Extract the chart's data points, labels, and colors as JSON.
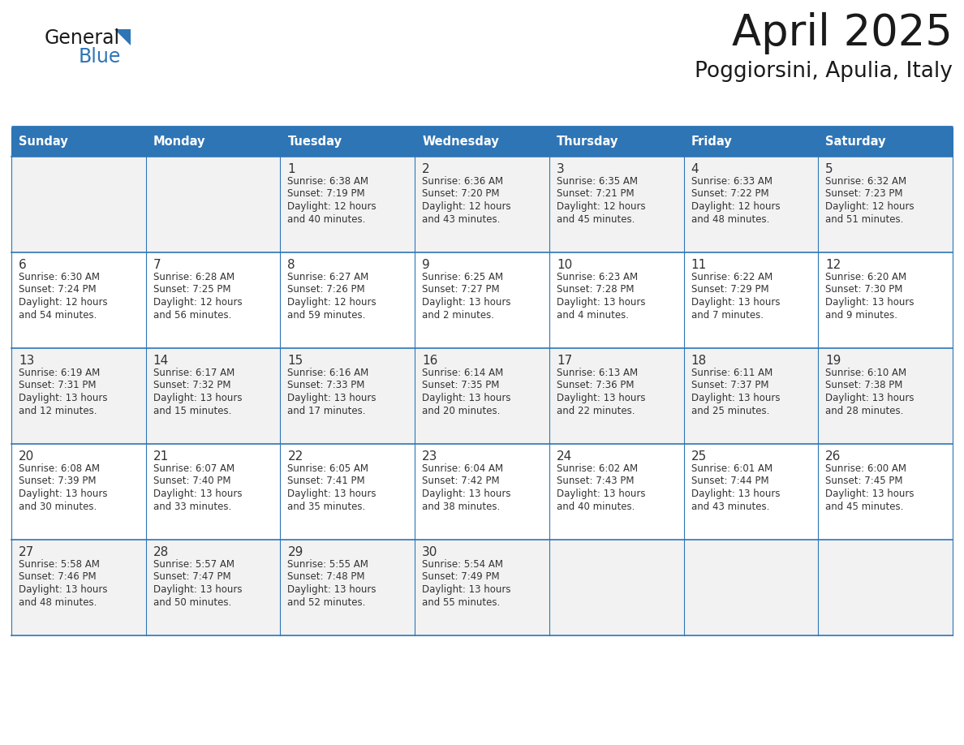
{
  "title": "April 2025",
  "subtitle": "Poggiorsini, Apulia, Italy",
  "days_of_week": [
    "Sunday",
    "Monday",
    "Tuesday",
    "Wednesday",
    "Thursday",
    "Friday",
    "Saturday"
  ],
  "header_bg": "#2E75B6",
  "header_text": "#FFFFFF",
  "cell_bg_light": "#F2F2F2",
  "cell_bg_white": "#FFFFFF",
  "border_color": "#2E75B6",
  "text_color": "#333333",
  "calendar_data": [
    [
      {
        "day": "",
        "sunrise": "",
        "sunset": "",
        "daylight_h": "",
        "daylight_m": ""
      },
      {
        "day": "",
        "sunrise": "",
        "sunset": "",
        "daylight_h": "",
        "daylight_m": ""
      },
      {
        "day": "1",
        "sunrise": "6:38 AM",
        "sunset": "7:19 PM",
        "daylight_h": "12",
        "daylight_m": "40"
      },
      {
        "day": "2",
        "sunrise": "6:36 AM",
        "sunset": "7:20 PM",
        "daylight_h": "12",
        "daylight_m": "43"
      },
      {
        "day": "3",
        "sunrise": "6:35 AM",
        "sunset": "7:21 PM",
        "daylight_h": "12",
        "daylight_m": "45"
      },
      {
        "day": "4",
        "sunrise": "6:33 AM",
        "sunset": "7:22 PM",
        "daylight_h": "12",
        "daylight_m": "48"
      },
      {
        "day": "5",
        "sunrise": "6:32 AM",
        "sunset": "7:23 PM",
        "daylight_h": "12",
        "daylight_m": "51"
      }
    ],
    [
      {
        "day": "6",
        "sunrise": "6:30 AM",
        "sunset": "7:24 PM",
        "daylight_h": "12",
        "daylight_m": "54"
      },
      {
        "day": "7",
        "sunrise": "6:28 AM",
        "sunset": "7:25 PM",
        "daylight_h": "12",
        "daylight_m": "56"
      },
      {
        "day": "8",
        "sunrise": "6:27 AM",
        "sunset": "7:26 PM",
        "daylight_h": "12",
        "daylight_m": "59"
      },
      {
        "day": "9",
        "sunrise": "6:25 AM",
        "sunset": "7:27 PM",
        "daylight_h": "13",
        "daylight_m": "2"
      },
      {
        "day": "10",
        "sunrise": "6:23 AM",
        "sunset": "7:28 PM",
        "daylight_h": "13",
        "daylight_m": "4"
      },
      {
        "day": "11",
        "sunrise": "6:22 AM",
        "sunset": "7:29 PM",
        "daylight_h": "13",
        "daylight_m": "7"
      },
      {
        "day": "12",
        "sunrise": "6:20 AM",
        "sunset": "7:30 PM",
        "daylight_h": "13",
        "daylight_m": "9"
      }
    ],
    [
      {
        "day": "13",
        "sunrise": "6:19 AM",
        "sunset": "7:31 PM",
        "daylight_h": "13",
        "daylight_m": "12"
      },
      {
        "day": "14",
        "sunrise": "6:17 AM",
        "sunset": "7:32 PM",
        "daylight_h": "13",
        "daylight_m": "15"
      },
      {
        "day": "15",
        "sunrise": "6:16 AM",
        "sunset": "7:33 PM",
        "daylight_h": "13",
        "daylight_m": "17"
      },
      {
        "day": "16",
        "sunrise": "6:14 AM",
        "sunset": "7:35 PM",
        "daylight_h": "13",
        "daylight_m": "20"
      },
      {
        "day": "17",
        "sunrise": "6:13 AM",
        "sunset": "7:36 PM",
        "daylight_h": "13",
        "daylight_m": "22"
      },
      {
        "day": "18",
        "sunrise": "6:11 AM",
        "sunset": "7:37 PM",
        "daylight_h": "13",
        "daylight_m": "25"
      },
      {
        "day": "19",
        "sunrise": "6:10 AM",
        "sunset": "7:38 PM",
        "daylight_h": "13",
        "daylight_m": "28"
      }
    ],
    [
      {
        "day": "20",
        "sunrise": "6:08 AM",
        "sunset": "7:39 PM",
        "daylight_h": "13",
        "daylight_m": "30"
      },
      {
        "day": "21",
        "sunrise": "6:07 AM",
        "sunset": "7:40 PM",
        "daylight_h": "13",
        "daylight_m": "33"
      },
      {
        "day": "22",
        "sunrise": "6:05 AM",
        "sunset": "7:41 PM",
        "daylight_h": "13",
        "daylight_m": "35"
      },
      {
        "day": "23",
        "sunrise": "6:04 AM",
        "sunset": "7:42 PM",
        "daylight_h": "13",
        "daylight_m": "38"
      },
      {
        "day": "24",
        "sunrise": "6:02 AM",
        "sunset": "7:43 PM",
        "daylight_h": "13",
        "daylight_m": "40"
      },
      {
        "day": "25",
        "sunrise": "6:01 AM",
        "sunset": "7:44 PM",
        "daylight_h": "13",
        "daylight_m": "43"
      },
      {
        "day": "26",
        "sunrise": "6:00 AM",
        "sunset": "7:45 PM",
        "daylight_h": "13",
        "daylight_m": "45"
      }
    ],
    [
      {
        "day": "27",
        "sunrise": "5:58 AM",
        "sunset": "7:46 PM",
        "daylight_h": "13",
        "daylight_m": "48"
      },
      {
        "day": "28",
        "sunrise": "5:57 AM",
        "sunset": "7:47 PM",
        "daylight_h": "13",
        "daylight_m": "50"
      },
      {
        "day": "29",
        "sunrise": "5:55 AM",
        "sunset": "7:48 PM",
        "daylight_h": "13",
        "daylight_m": "52"
      },
      {
        "day": "30",
        "sunrise": "5:54 AM",
        "sunset": "7:49 PM",
        "daylight_h": "13",
        "daylight_m": "55"
      },
      {
        "day": "",
        "sunrise": "",
        "sunset": "",
        "daylight_h": "",
        "daylight_m": ""
      },
      {
        "day": "",
        "sunrise": "",
        "sunset": "",
        "daylight_h": "",
        "daylight_m": ""
      },
      {
        "day": "",
        "sunrise": "",
        "sunset": "",
        "daylight_h": "",
        "daylight_m": ""
      }
    ]
  ],
  "logo_color_general": "#1a1a1a",
  "logo_color_blue": "#2E75B6",
  "figwidth": 11.88,
  "figheight": 9.18,
  "dpi": 100
}
